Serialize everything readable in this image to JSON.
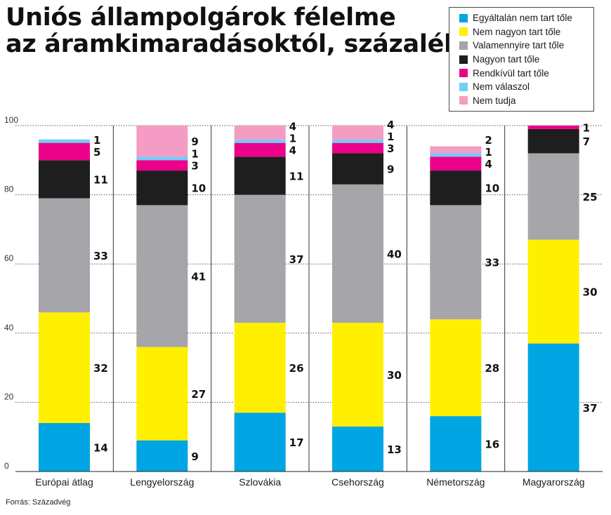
{
  "title": {
    "line1": "Uniós állampolgárok félelme",
    "line2": "az áramkimaradásoktól, százalék"
  },
  "source": "Forrás: Századvég",
  "colors": {
    "Egyáltalán nem tart tőle": "#00a5e3",
    "Nem nagyon tart tőle": "#ffef00",
    "Valamennyire tart tőle": "#a5a5aa",
    "Nagyon tart tőle": "#1e1e1e",
    "Rendkívül tart tőle": "#eb008a",
    "Nem válaszol": "#6fcff5",
    "Nem tudja": "#f49cc4"
  },
  "chart_data": {
    "type": "bar",
    "stacked": true,
    "title": "Uniós állampolgárok félelme az áramkimaradásoktól, százalék",
    "categories": [
      "Európai átlag",
      "Lengyelország",
      "Szlovákia",
      "Csehország",
      "Németország",
      "Magyarország"
    ],
    "ylim": [
      0,
      100
    ],
    "yticks": [
      0,
      20,
      40,
      60,
      80,
      100
    ],
    "grid": true,
    "legend_position": "top-right",
    "series": [
      {
        "name": "Egyáltalán nem tart tőle",
        "values": [
          14,
          9,
          17,
          13,
          16,
          37
        ]
      },
      {
        "name": "Nem nagyon tart tőle",
        "values": [
          32,
          27,
          26,
          30,
          28,
          30
        ]
      },
      {
        "name": "Valamennyire tart tőle",
        "values": [
          33,
          41,
          37,
          40,
          33,
          25
        ]
      },
      {
        "name": "Nagyon tart tőle",
        "values": [
          11,
          10,
          11,
          9,
          10,
          7
        ]
      },
      {
        "name": "Rendkívül tart tőle",
        "values": [
          5,
          3,
          4,
          3,
          4,
          1
        ]
      },
      {
        "name": "Nem válaszol",
        "values": [
          1,
          1,
          1,
          1,
          1,
          0
        ]
      },
      {
        "name": "Nem tudja",
        "values": [
          0,
          9,
          4,
          4,
          2,
          0
        ]
      }
    ],
    "data_labels": [
      [
        "14",
        "32",
        "33",
        "11",
        "5",
        "1",
        ""
      ],
      [
        "9",
        "27",
        "41",
        "10",
        "3",
        "1",
        "9"
      ],
      [
        "17",
        "26",
        "37",
        "11",
        "4",
        "1",
        "4"
      ],
      [
        "13",
        "30",
        "40",
        "9",
        "3",
        "1",
        "4"
      ],
      [
        "16",
        "28",
        "33",
        "10",
        "4",
        "1",
        "2"
      ],
      [
        "37",
        "30",
        "25",
        "7",
        "1",
        "",
        ""
      ]
    ]
  }
}
